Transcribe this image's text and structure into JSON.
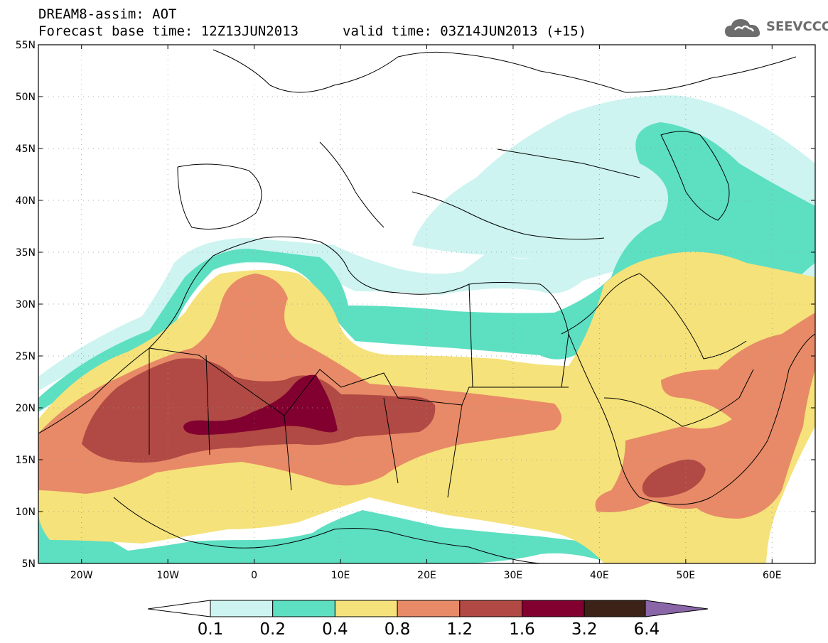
{
  "header": {
    "title_line1": "DREAM8-assim: AOT",
    "title_line2": "Forecast base time: 12Z13JUN2013",
    "valid_time": "valid time: 03Z14JUN2013 (+15)",
    "logo_text": "SEEVCCC",
    "logo_icon": "cloud-icon"
  },
  "map": {
    "lat_labels": [
      "55N",
      "50N",
      "45N",
      "40N",
      "35N",
      "30N",
      "25N",
      "20N",
      "15N",
      "10N",
      "5N"
    ],
    "lon_labels": [
      "20W",
      "10W",
      "0",
      "10E",
      "20E",
      "30E",
      "40E",
      "50E",
      "60E"
    ],
    "lat_range": [
      5,
      55
    ],
    "lon_range": [
      -25,
      65
    ],
    "grid": "dotted",
    "colors": {
      "c_0_1": "#cdf4f0",
      "c_0_2": "#5ddfc2",
      "c_0_4": "#f5e27a",
      "c_0_8": "#e88a67",
      "c_1_2": "#b14a44",
      "c_1_6": "#82002f",
      "c_3_2": "#3c2217",
      "c_6_4": "#8a66a8"
    }
  },
  "colorbar": {
    "labels": [
      "0.1",
      "0.2",
      "0.4",
      "0.8",
      "1.2",
      "1.6",
      "3.2",
      "6.4"
    ],
    "colors": [
      "#cdf4f0",
      "#5ddfc2",
      "#f5e27a",
      "#e88a67",
      "#b14a44",
      "#82002f",
      "#3c2217"
    ],
    "under_color": "#ffffff",
    "over_color": "#8a66a8"
  }
}
